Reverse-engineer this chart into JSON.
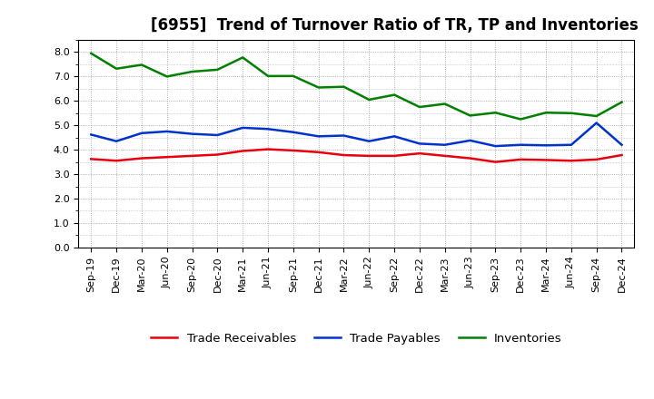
{
  "title": "[6955]  Trend of Turnover Ratio of TR, TP and Inventories",
  "ylim": [
    0.0,
    8.5
  ],
  "yticks": [
    0.0,
    1.0,
    2.0,
    3.0,
    4.0,
    5.0,
    6.0,
    7.0,
    8.0
  ],
  "labels": [
    "Sep-19",
    "Dec-19",
    "Mar-20",
    "Jun-20",
    "Sep-20",
    "Dec-20",
    "Mar-21",
    "Jun-21",
    "Sep-21",
    "Dec-21",
    "Mar-22",
    "Jun-22",
    "Sep-22",
    "Dec-22",
    "Mar-23",
    "Jun-23",
    "Sep-23",
    "Dec-23",
    "Mar-24",
    "Jun-24",
    "Sep-24",
    "Dec-24"
  ],
  "trade_receivables": [
    3.62,
    3.55,
    3.65,
    3.7,
    3.75,
    3.8,
    3.95,
    4.02,
    3.97,
    3.9,
    3.78,
    3.75,
    3.75,
    3.85,
    3.75,
    3.65,
    3.5,
    3.6,
    3.58,
    3.55,
    3.6,
    3.78
  ],
  "trade_payables": [
    4.62,
    4.35,
    4.68,
    4.75,
    4.65,
    4.6,
    4.9,
    4.85,
    4.72,
    4.55,
    4.58,
    4.35,
    4.55,
    4.25,
    4.2,
    4.38,
    4.15,
    4.2,
    4.18,
    4.2,
    5.1,
    4.2
  ],
  "inventories": [
    7.95,
    7.32,
    7.48,
    7.0,
    7.2,
    7.28,
    7.78,
    7.02,
    7.02,
    6.55,
    6.58,
    6.05,
    6.25,
    5.75,
    5.88,
    5.4,
    5.52,
    5.25,
    5.52,
    5.5,
    5.38,
    5.95
  ],
  "tr_color": "#e8000d",
  "tp_color": "#0033cc",
  "inv_color": "#008000",
  "legend_labels": [
    "Trade Receivables",
    "Trade Payables",
    "Inventories"
  ],
  "background_color": "#ffffff",
  "grid_color": "#999999",
  "title_fontsize": 12,
  "legend_fontsize": 9.5,
  "tick_fontsize": 8
}
